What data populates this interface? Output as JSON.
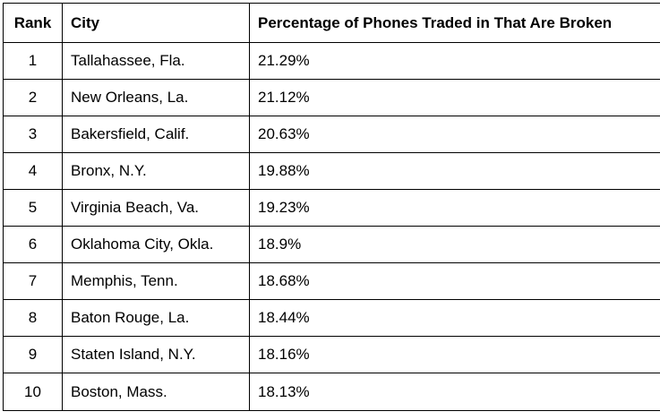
{
  "table": {
    "headers": {
      "rank": "Rank",
      "city": "City",
      "percentage": "Percentage of Phones Traded in That Are Broken"
    },
    "rows": [
      {
        "rank": "1",
        "city": "Tallahassee, Fla.",
        "percentage": "21.29%"
      },
      {
        "rank": "2",
        "city": "New Orleans, La.",
        "percentage": "21.12%"
      },
      {
        "rank": "3",
        "city": "Bakersfield, Calif.",
        "percentage": "20.63%"
      },
      {
        "rank": "4",
        "city": "Bronx, N.Y.",
        "percentage": "19.88%"
      },
      {
        "rank": "5",
        "city": "Virginia Beach, Va.",
        "percentage": "19.23%"
      },
      {
        "rank": "6",
        "city": "Oklahoma City, Okla.",
        "percentage": "18.9%"
      },
      {
        "rank": "7",
        "city": "Memphis, Tenn.",
        "percentage": "18.68%"
      },
      {
        "rank": "8",
        "city": "Baton Rouge, La.",
        "percentage": "18.44%"
      },
      {
        "rank": "9",
        "city": "Staten Island, N.Y.",
        "percentage": "18.16%"
      },
      {
        "rank": "10",
        "city": "Boston, Mass.",
        "percentage": "18.13%"
      }
    ]
  }
}
